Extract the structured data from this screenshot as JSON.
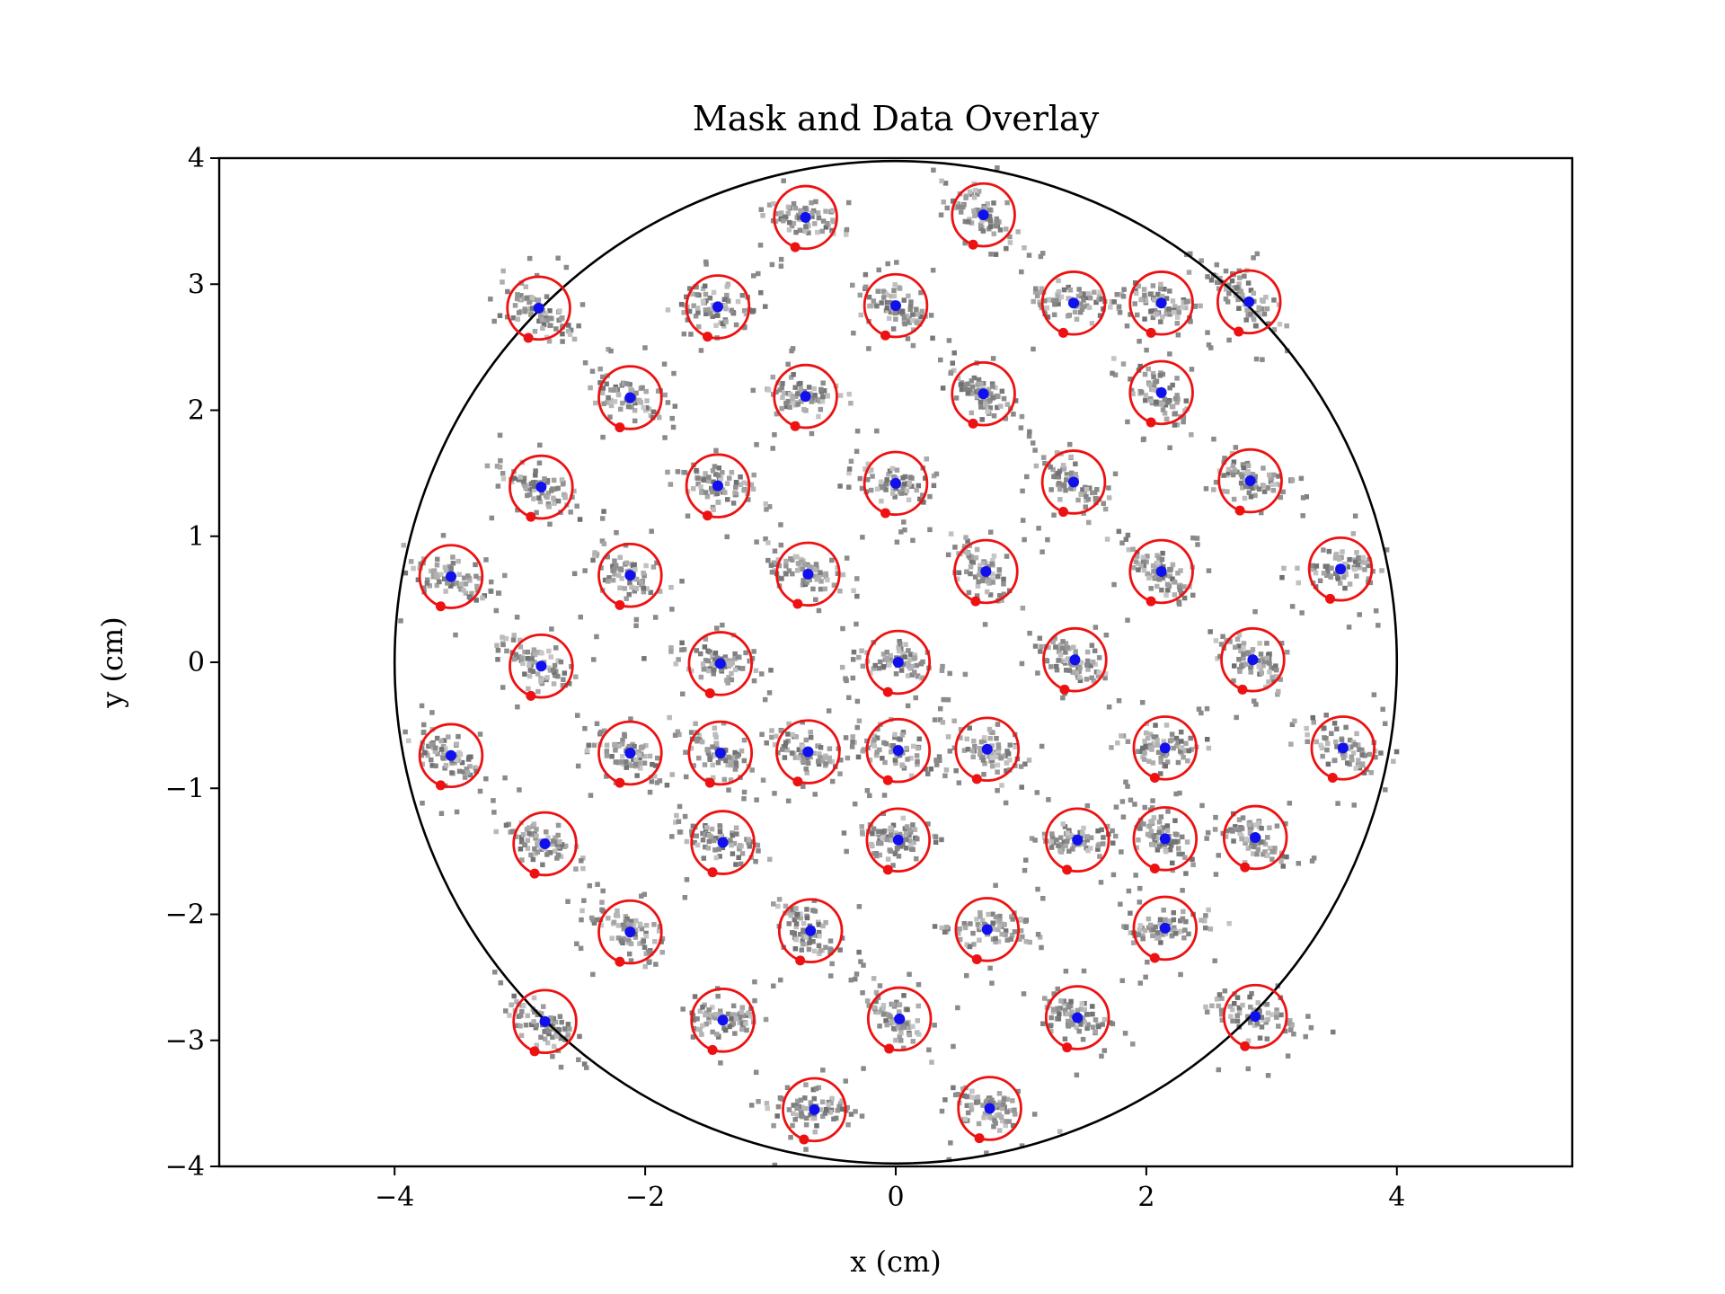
{
  "chart_data": {
    "type": "scatter",
    "title": "Mask and Data Overlay",
    "xlabel": "x (cm)",
    "ylabel": "y (cm)",
    "xlim": [
      -5.4,
      5.4
    ],
    "ylim": [
      -4,
      4
    ],
    "xticks": [
      -4,
      -2,
      0,
      2,
      4
    ],
    "yticks": [
      -4,
      -3,
      -2,
      -1,
      0,
      1,
      2,
      3,
      4
    ],
    "xtick_labels": [
      "−4",
      "−2",
      "0",
      "2",
      "4"
    ],
    "ytick_labels": [
      "−4",
      "−3",
      "−2",
      "−1",
      "0",
      "1",
      "2",
      "3",
      "4"
    ],
    "grid": false,
    "boundary_circle": {
      "cx": 0,
      "cy": 0,
      "r": 4.0,
      "color": "#000000"
    },
    "mask_ring_radius": 0.25,
    "colors": {
      "ring": "#ee1111",
      "blue_dot": "#1010ee",
      "red_dot": "#ee1111",
      "data": "#808080"
    },
    "mask_centers": [
      [
        -0.72,
        3.53
      ],
      [
        0.7,
        3.55
      ],
      [
        -2.85,
        2.81
      ],
      [
        -1.42,
        2.82
      ],
      [
        0.0,
        2.83
      ],
      [
        1.42,
        2.85
      ],
      [
        2.12,
        2.85
      ],
      [
        2.82,
        2.86
      ],
      [
        -2.12,
        2.1
      ],
      [
        -0.72,
        2.11
      ],
      [
        0.7,
        2.13
      ],
      [
        2.12,
        2.14
      ],
      [
        -2.83,
        1.39
      ],
      [
        -1.42,
        1.4
      ],
      [
        0.0,
        1.42
      ],
      [
        1.42,
        1.43
      ],
      [
        2.83,
        1.44
      ],
      [
        -3.55,
        0.68
      ],
      [
        -2.12,
        0.69
      ],
      [
        -0.7,
        0.7
      ],
      [
        0.72,
        0.72
      ],
      [
        2.12,
        0.72
      ],
      [
        3.55,
        0.74
      ],
      [
        -2.83,
        -0.03
      ],
      [
        -1.4,
        -0.01
      ],
      [
        0.02,
        0.0
      ],
      [
        1.43,
        0.02
      ],
      [
        2.85,
        0.02
      ],
      [
        -3.55,
        -0.74
      ],
      [
        -2.12,
        -0.72
      ],
      [
        -1.4,
        -0.72
      ],
      [
        -0.7,
        -0.71
      ],
      [
        0.02,
        -0.7
      ],
      [
        0.73,
        -0.69
      ],
      [
        2.15,
        -0.68
      ],
      [
        3.57,
        -0.68
      ],
      [
        -2.8,
        -1.44
      ],
      [
        -1.38,
        -1.43
      ],
      [
        0.02,
        -1.41
      ],
      [
        1.45,
        -1.41
      ],
      [
        2.15,
        -1.4
      ],
      [
        2.87,
        -1.39
      ],
      [
        -2.12,
        -2.14
      ],
      [
        -0.68,
        -2.13
      ],
      [
        0.73,
        -2.12
      ],
      [
        2.15,
        -2.11
      ],
      [
        -2.8,
        -2.85
      ],
      [
        -1.38,
        -2.84
      ],
      [
        0.03,
        -2.83
      ],
      [
        1.45,
        -2.82
      ],
      [
        2.87,
        -2.81
      ],
      [
        -0.65,
        -3.55
      ],
      [
        0.75,
        -3.54
      ]
    ]
  }
}
